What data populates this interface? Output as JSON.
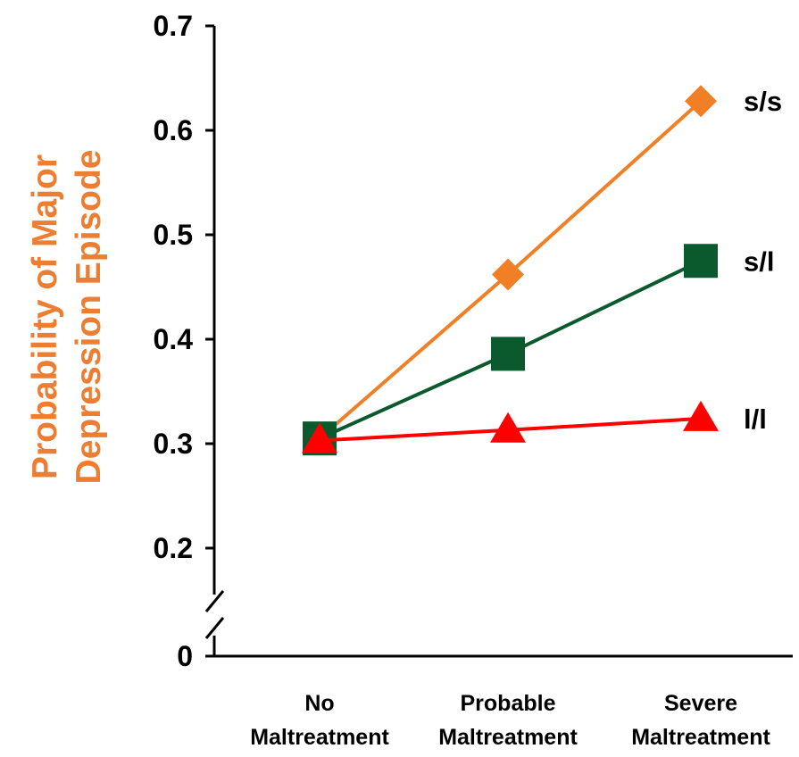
{
  "chart_data": {
    "type": "line",
    "title": "",
    "xlabel": "",
    "ylabel_lines": [
      "Probability of Major",
      "Depression Episode"
    ],
    "ylabel_color": "#ED7D31",
    "categories": [
      [
        "No",
        "Maltreatment"
      ],
      [
        "Probable",
        "Maltreatment"
      ],
      [
        "Severe",
        "Maltreatment"
      ]
    ],
    "y_ticks": [
      {
        "label": "0.7",
        "value": 0.7
      },
      {
        "label": "0.6",
        "value": 0.6
      },
      {
        "label": "0.5",
        "value": 0.5
      },
      {
        "label": "0.4",
        "value": 0.4
      },
      {
        "label": "0.3",
        "value": 0.3
      },
      {
        "label": "0.2",
        "value": 0.2
      },
      {
        "label": "0",
        "value": 0
      }
    ],
    "ylim": [
      0.2,
      0.7
    ],
    "axis_break": true,
    "grid": false,
    "series": [
      {
        "name": "s/s",
        "marker": "diamond",
        "color": "#F07F25",
        "values": [
          0.305,
          0.462,
          0.628
        ]
      },
      {
        "name": "s/l",
        "marker": "square",
        "color": "#0A5A2E",
        "values": [
          0.305,
          0.386,
          0.475
        ]
      },
      {
        "name": "l/l",
        "marker": "triangle",
        "color": "#FF0000",
        "values": [
          0.303,
          0.313,
          0.324
        ]
      }
    ]
  }
}
